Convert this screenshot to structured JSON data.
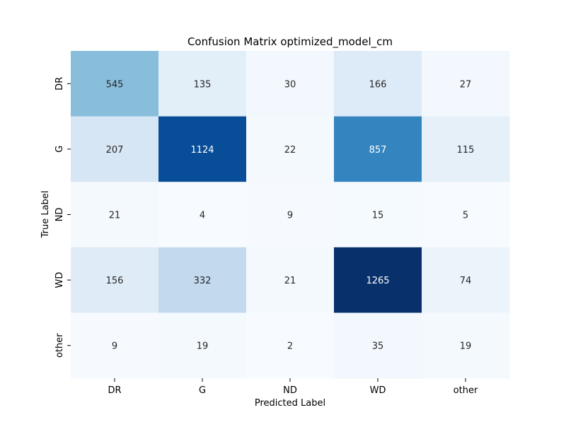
{
  "chart_data": {
    "type": "heatmap",
    "title": "Confusion Matrix optimized_model_cm",
    "xlabel": "Predicted Label",
    "ylabel": "True Label",
    "x_categories": [
      "DR",
      "G",
      "ND",
      "WD",
      "other"
    ],
    "y_categories": [
      "DR",
      "G",
      "ND",
      "WD",
      "other"
    ],
    "values": [
      [
        545,
        135,
        30,
        166,
        27
      ],
      [
        207,
        1124,
        22,
        857,
        115
      ],
      [
        21,
        4,
        9,
        15,
        5
      ],
      [
        156,
        332,
        21,
        1265,
        74
      ],
      [
        9,
        19,
        2,
        35,
        19
      ]
    ],
    "colormap": "Blues",
    "color_range": [
      2,
      1265
    ],
    "colorbar": false,
    "grid": false
  }
}
